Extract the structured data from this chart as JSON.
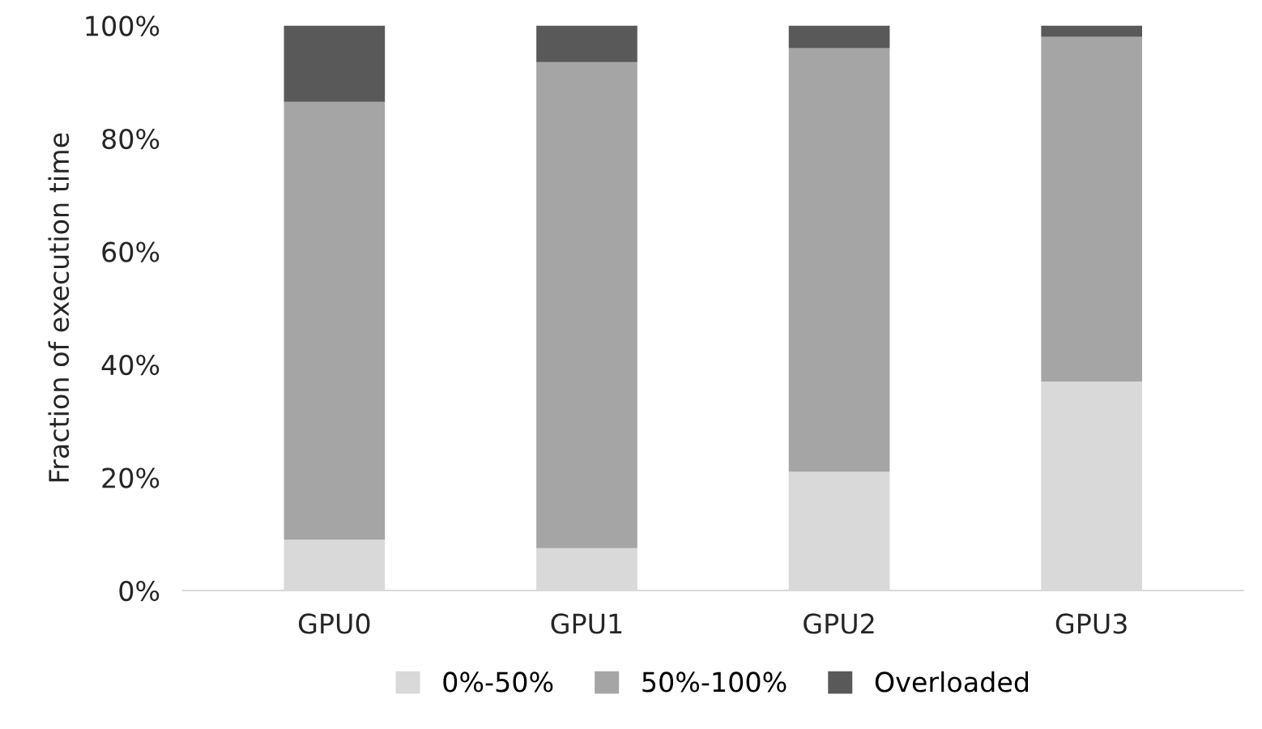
{
  "chart_data": {
    "type": "bar",
    "stacked": true,
    "ylabel": "Fraction of execution time",
    "categories": [
      "GPU0",
      "GPU1",
      "GPU2",
      "GPU3"
    ],
    "series": [
      {
        "name": "0%-50%",
        "color": "#d9d9d9",
        "values": [
          9,
          7.5,
          21,
          37
        ]
      },
      {
        "name": "50%-100%",
        "color": "#a5a5a5",
        "values": [
          77.5,
          86,
          75,
          61
        ]
      },
      {
        "name": "Overloaded",
        "color": "#595959",
        "values": [
          13.5,
          6.5,
          4,
          2
        ]
      }
    ],
    "ylim": [
      0,
      100
    ],
    "yticks": [
      {
        "value": 0,
        "label": "0%"
      },
      {
        "value": 20,
        "label": "20%"
      },
      {
        "value": 40,
        "label": "40%"
      },
      {
        "value": 60,
        "label": "60%"
      },
      {
        "value": 80,
        "label": "80%"
      },
      {
        "value": 100,
        "label": "100%"
      }
    ],
    "grid": false,
    "legend": "bottom"
  }
}
